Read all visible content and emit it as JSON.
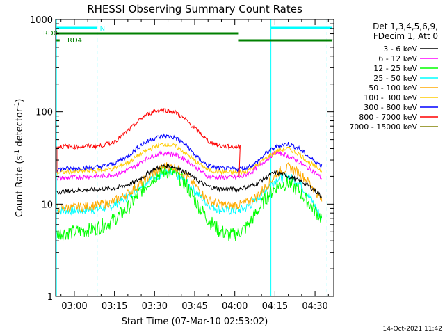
{
  "chart_data": {
    "type": "line",
    "title": "RHESSI Observing Summary Count Rates",
    "xlabel": "Start Time (07-Mar-10 02:53:02)",
    "ylabel_main": "Count Rate (s",
    "ylabel_sup1": "-1",
    "ylabel_mid": " detector",
    "ylabel_sup2": "-1",
    "ylabel_end": ")",
    "yscale": "log",
    "xlim_min": [
      173,
      277
    ],
    "ylim": [
      1,
      1000
    ],
    "x_ticks": [
      {
        "min": 180,
        "label": "03:00"
      },
      {
        "min": 195,
        "label": "03:15"
      },
      {
        "min": 210,
        "label": "03:30"
      },
      {
        "min": 225,
        "label": "03:45"
      },
      {
        "min": 240,
        "label": "04:00"
      },
      {
        "min": 255,
        "label": "04:15"
      },
      {
        "min": 270,
        "label": "04:30"
      }
    ],
    "y_ticks": [
      {
        "value": 1,
        "label": "1"
      },
      {
        "value": 10,
        "label": "10"
      },
      {
        "value": 100,
        "label": "100"
      },
      {
        "value": 1000,
        "label": "1000"
      }
    ],
    "legend_header": [
      "Det 1,3,4,5,6,9,",
      "FDecim 1, Att 0"
    ],
    "series": [
      {
        "name": "3 - 6 keV",
        "color": "#000000",
        "x": [
          173.5,
          180,
          190,
          196,
          202,
          206,
          210,
          214,
          218,
          222,
          226,
          230,
          235,
          241,
          243,
          247,
          251,
          255,
          258,
          262,
          266,
          270,
          272.5
        ],
        "y": [
          13.5,
          14,
          14.5,
          15,
          17,
          20,
          24,
          26,
          25,
          22,
          18,
          15.5,
          14.5,
          14.5,
          15,
          16,
          19,
          22,
          21,
          19,
          17,
          14,
          12
        ]
      },
      {
        "name": "6 - 12 keV",
        "color": "#ff00ff",
        "x": [
          173.5,
          180,
          190,
          196,
          202,
          206,
          210,
          214,
          218,
          222,
          226,
          230,
          235,
          241,
          243,
          247,
          251,
          255,
          258,
          262,
          266,
          270,
          272.5
        ],
        "y": [
          19,
          19.5,
          20,
          21,
          25,
          30,
          34,
          36,
          34,
          30,
          24,
          20,
          19.5,
          19.5,
          20,
          23,
          29,
          36,
          35,
          31,
          26,
          22,
          19
        ]
      },
      {
        "name": "12 - 25 keV",
        "color": "#00ff00",
        "x": [
          173.5,
          180,
          188,
          194,
          200,
          205,
          210,
          214,
          218,
          222,
          226,
          230,
          234,
          238,
          241,
          244,
          248,
          252,
          256,
          260,
          264,
          268,
          272.5
        ],
        "y": [
          4.8,
          5,
          5.4,
          6.5,
          9,
          14,
          20,
          23,
          21,
          16,
          10,
          6.8,
          5.2,
          4.6,
          4.8,
          5.5,
          8,
          12,
          16,
          17,
          14,
          10,
          7
        ]
      },
      {
        "name": "25 - 50 keV",
        "color": "#00ffff",
        "x": [
          173.5,
          180,
          188,
          194,
          200,
          205,
          210,
          214,
          218,
          222,
          226,
          230,
          234,
          238,
          241,
          244,
          248,
          252,
          256,
          260,
          264,
          268,
          272.5
        ],
        "y": [
          8.5,
          8.6,
          8.8,
          9.5,
          12,
          16,
          20,
          22,
          21,
          17,
          13,
          10,
          8.8,
          8.5,
          8.6,
          9,
          11,
          15,
          19,
          20,
          17,
          12,
          7
        ]
      },
      {
        "name": "50 - 100 keV",
        "color": "#ffaa00",
        "x": [
          173.5,
          180,
          188,
          194,
          200,
          205,
          210,
          214,
          218,
          222,
          226,
          230,
          234,
          238,
          241,
          244,
          248,
          252,
          256,
          260,
          264,
          268,
          272.5
        ],
        "y": [
          9,
          9.2,
          9.6,
          10.5,
          13,
          17,
          22,
          26,
          25,
          20,
          15,
          11,
          10,
          9.6,
          9.8,
          10.2,
          12,
          16,
          22,
          25,
          22,
          17,
          11
        ]
      },
      {
        "name": "100 - 300 keV",
        "color": "#ffcc00",
        "x": [
          173.5,
          180,
          188,
          194,
          200,
          205,
          210,
          214,
          218,
          222,
          226,
          230,
          234,
          238,
          241,
          244,
          248,
          252,
          256,
          260,
          264,
          268,
          272.5
        ],
        "y": [
          22,
          22.5,
          23,
          24,
          28,
          35,
          42,
          45,
          42,
          35,
          28,
          23.5,
          22.5,
          22,
          22,
          22.5,
          26,
          32,
          38,
          40,
          35,
          28,
          23
        ]
      },
      {
        "name": "300 - 800 keV",
        "color": "#0000ff",
        "x": [
          173.5,
          180,
          188,
          194,
          200,
          205,
          210,
          214,
          218,
          222,
          226,
          230,
          234,
          238,
          241,
          244,
          248,
          252,
          256,
          260,
          264,
          268,
          272.5
        ],
        "y": [
          24,
          24.5,
          25,
          27,
          33,
          44,
          52,
          55,
          52,
          43,
          32,
          26,
          24.5,
          24,
          24,
          24.5,
          28,
          36,
          43,
          45,
          40,
          32,
          26
        ]
      },
      {
        "name": "800 - 7000 keV",
        "color": "#ff0000",
        "x": [
          173.5,
          180,
          186,
          190,
          194,
          198,
          202,
          206,
          210,
          214,
          218,
          222,
          226,
          230,
          234,
          238,
          241,
          242
        ],
        "y": [
          42,
          42,
          42.5,
          43,
          46,
          55,
          70,
          90,
          102,
          105,
          98,
          80,
          62,
          48,
          43,
          42,
          42,
          42
        ]
      },
      {
        "name": "7000 - 15000 keV",
        "color": "#808000",
        "x": [],
        "y": []
      }
    ],
    "attenuator_labels": [
      {
        "name": "RD0",
        "color": "#008000"
      },
      {
        "name": "RD4",
        "color": "#008000"
      },
      {
        "name": "N",
        "color": "#00ffff"
      }
    ],
    "footer_date": "14-Oct-2021 11:42"
  }
}
